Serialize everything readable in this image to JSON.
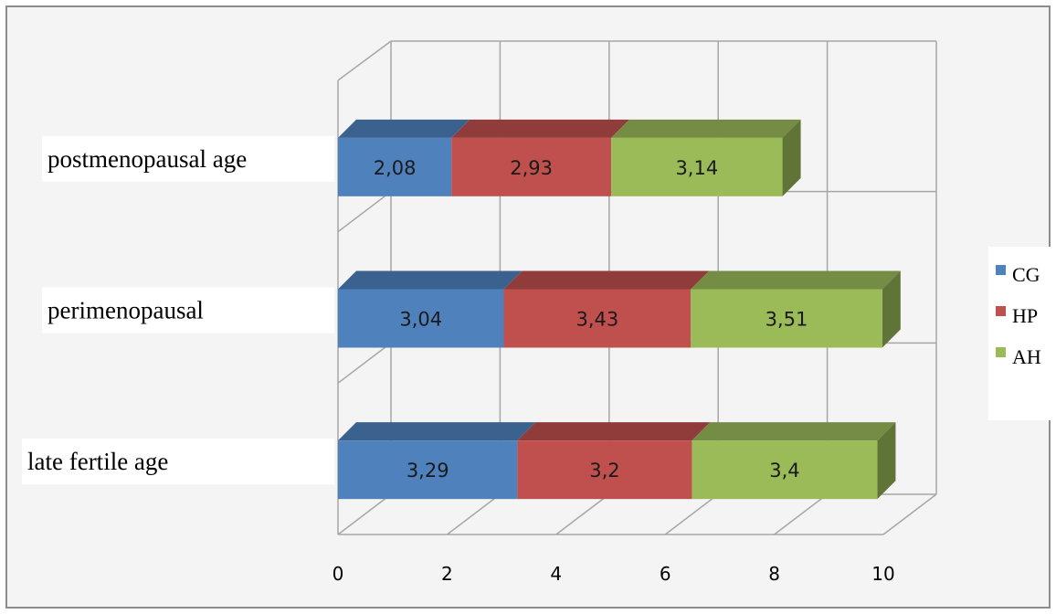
{
  "chart_data": {
    "type": "bar",
    "orientation": "horizontal",
    "stacked": true,
    "three_d": true,
    "categories": [
      "late fertile age",
      "perimenopausal",
      "postmenopausal age"
    ],
    "series": [
      {
        "name": "CG",
        "color": "#4f81bd",
        "values": [
          3.29,
          3.04,
          2.08
        ],
        "labels": [
          "3,29",
          "3,04",
          "2,08"
        ]
      },
      {
        "name": "HP",
        "color": "#c0504d",
        "values": [
          3.2,
          3.43,
          2.93
        ],
        "labels": [
          "3,2",
          "3,43",
          "2,93"
        ]
      },
      {
        "name": "AH",
        "color": "#9bbb59",
        "values": [
          3.4,
          3.51,
          3.14
        ],
        "labels": [
          "3,4",
          "3,51",
          "3,14"
        ]
      }
    ],
    "xlim": [
      0,
      10
    ],
    "xticks": [
      0,
      2,
      4,
      6,
      8,
      10
    ],
    "xtick_labels": [
      "0",
      "2",
      "4",
      "6",
      "8",
      "10"
    ],
    "grid": true,
    "legend_position": "right"
  }
}
